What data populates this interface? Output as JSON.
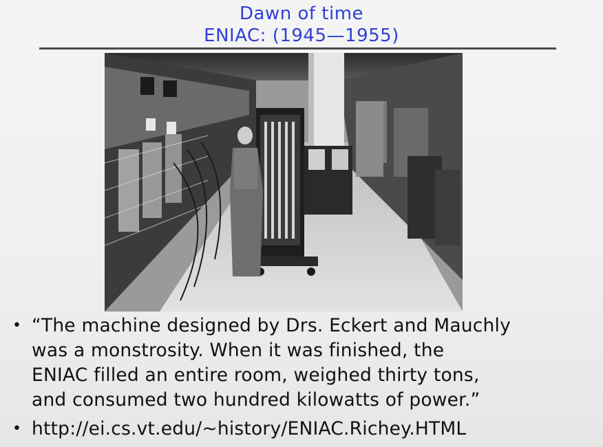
{
  "slide": {
    "title_line1": "Dawn of time",
    "title_line2": "ENIAC: (1945—1955)",
    "bullet_marker": "•",
    "bullets": [
      {
        "lines": [
          "“The machine designed by Drs. Eckert and Mauchly",
          "was a monstrosity. When it was finished, the",
          "ENIAC filled an entire room, weighed thirty tons,",
          "and consumed two hundred kilowatts of power.”"
        ]
      },
      {
        "lines": [
          "http://ei.cs.vt.edu/~history/ENIAC.Richey.HTML"
        ]
      }
    ]
  },
  "colors": {
    "title": "#2f3fd2",
    "rule": "#4a4a4a",
    "body_text": "#111111"
  }
}
